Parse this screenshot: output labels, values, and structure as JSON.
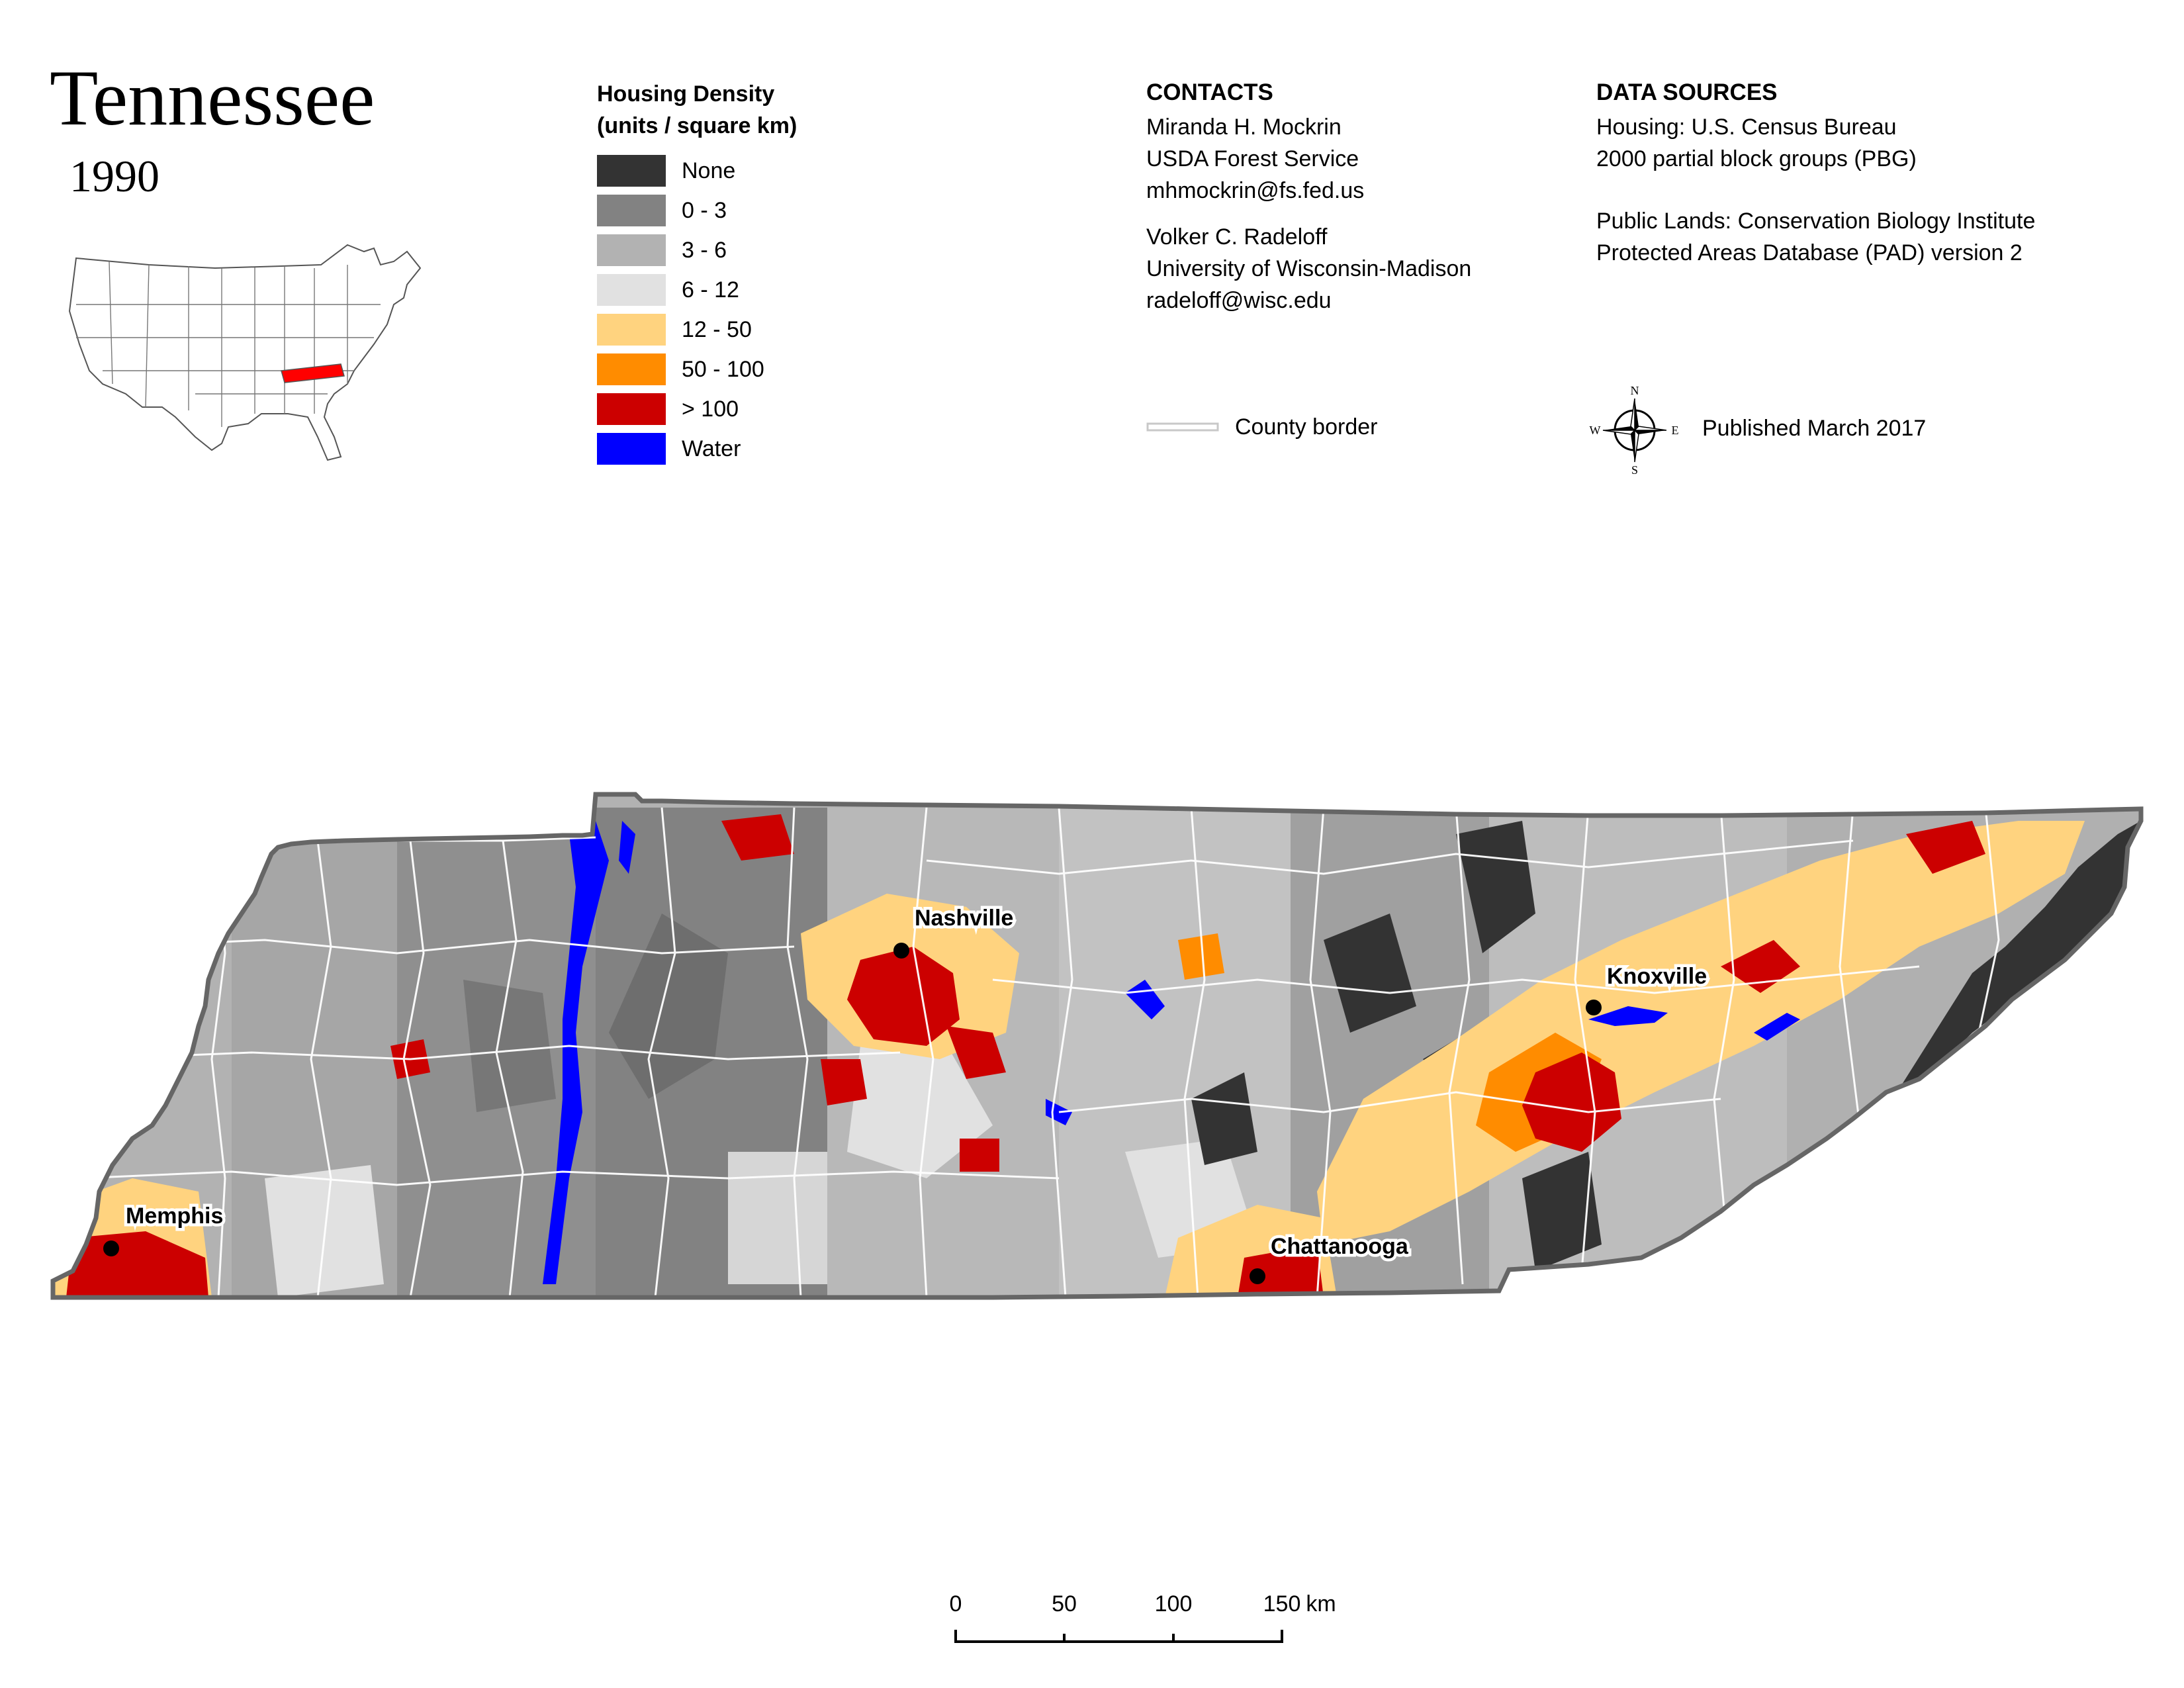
{
  "title": "Tennessee",
  "year": "1990",
  "legend": {
    "title_line1": "Housing Density",
    "title_line2": "(units / square km)",
    "items": [
      {
        "label": "None",
        "color": "#333333"
      },
      {
        "label": "0 - 3",
        "color": "#828282"
      },
      {
        "label": "3 - 6",
        "color": "#b2b2b2"
      },
      {
        "label": "6 - 12",
        "color": "#e1e1e1"
      },
      {
        "label": "12 - 50",
        "color": "#ffd37f"
      },
      {
        "label": "50 - 100",
        "color": "#ff8c00"
      },
      {
        "label": "> 100",
        "color": "#cc0000"
      },
      {
        "label": "Water",
        "color": "#0000ff"
      }
    ]
  },
  "contacts": {
    "heading": "CONTACTS",
    "person1": [
      "Miranda H. Mockrin",
      "USDA Forest Service",
      "mhmockrin@fs.fed.us"
    ],
    "person2": [
      "Volker C. Radeloff",
      "University of Wisconsin-Madison",
      "radeloff@wisc.edu"
    ],
    "county_border_label": "County border"
  },
  "data_sources": {
    "heading": "DATA SOURCES",
    "housing": [
      "Housing: U.S. Census Bureau",
      "2000 partial block groups (PBG)"
    ],
    "public_lands": [
      "Public Lands: Conservation Biology Institute",
      "Protected Areas Database (PAD) version 2"
    ],
    "published": "Published March 2017"
  },
  "compass": {
    "n": "N",
    "s": "S",
    "e": "E",
    "w": "W"
  },
  "cities": {
    "nashville": "Nashville",
    "knoxville": "Knoxville",
    "memphis": "Memphis",
    "chattanooga": "Chattanooga"
  },
  "scale_bar": {
    "ticks": [
      "0",
      "50",
      "100",
      "150"
    ],
    "unit": "km"
  },
  "inset_highlight_color": "#ff0000",
  "county_border_color": "#cccccc"
}
